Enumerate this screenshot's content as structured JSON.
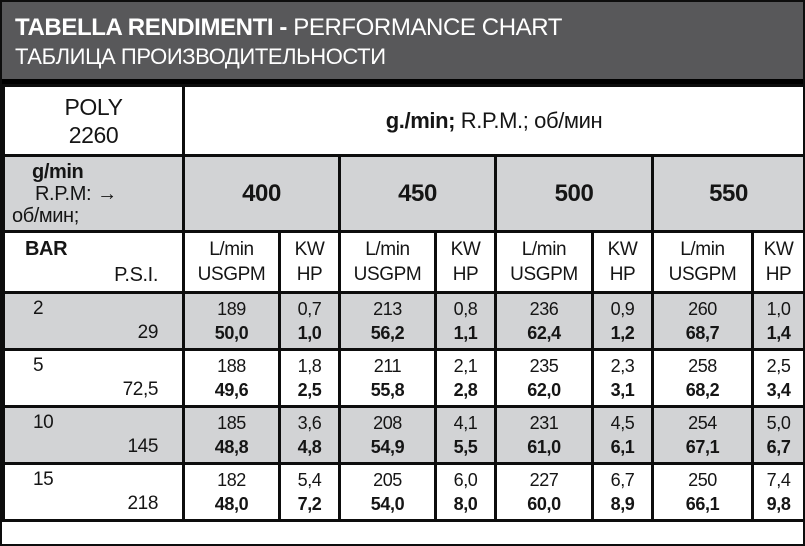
{
  "colors": {
    "title_bar_bg": "#58585a",
    "row_gray": "#d2d3d5",
    "border": "#0d0d0d",
    "title_text": "#ffffff",
    "body_text": "#151515"
  },
  "title": {
    "line1_bold": "TABELLA RENDIMENTI - ",
    "line1_regular": "PERFORMANCE CHART",
    "line2": "ТАБЛИЦА ПРОИЗВОДИТЕЛЬНОСТИ"
  },
  "model": {
    "line1": "POLY",
    "line2": "2260"
  },
  "units_header": {
    "bold": "g./min; ",
    "regular": " R.P.M.; об/мин"
  },
  "rpm_header": {
    "line1": "g/min",
    "line2": "R.P.M:",
    "arrow": "→",
    "line3": "об/мин;",
    "speeds": [
      "400",
      "450",
      "500",
      "550"
    ]
  },
  "col_header": {
    "left_top": "BAR",
    "left_bottom": "P.S.I.",
    "flow_top": "L/min",
    "flow_bottom": "USGPM",
    "power_top": "KW",
    "power_bottom": "HP"
  },
  "rows": [
    {
      "bar": "2",
      "psi": "29",
      "cells": [
        {
          "top": "189",
          "bottom": "50,0"
        },
        {
          "top": "0,7",
          "bottom": "1,0"
        },
        {
          "top": "213",
          "bottom": "56,2"
        },
        {
          "top": "0,8",
          "bottom": "1,1"
        },
        {
          "top": "236",
          "bottom": "62,4"
        },
        {
          "top": "0,9",
          "bottom": "1,2"
        },
        {
          "top": "260",
          "bottom": "68,7"
        },
        {
          "top": "1,0",
          "bottom": "1,4"
        }
      ]
    },
    {
      "bar": "5",
      "psi": "72,5",
      "cells": [
        {
          "top": "188",
          "bottom": "49,6"
        },
        {
          "top": "1,8",
          "bottom": "2,5"
        },
        {
          "top": "211",
          "bottom": "55,8"
        },
        {
          "top": "2,1",
          "bottom": "2,8"
        },
        {
          "top": "235",
          "bottom": "62,0"
        },
        {
          "top": "2,3",
          "bottom": "3,1"
        },
        {
          "top": "258",
          "bottom": "68,2"
        },
        {
          "top": "2,5",
          "bottom": "3,4"
        }
      ]
    },
    {
      "bar": "10",
      "psi": "145",
      "cells": [
        {
          "top": "185",
          "bottom": "48,8"
        },
        {
          "top": "3,6",
          "bottom": "4,8"
        },
        {
          "top": "208",
          "bottom": "54,9"
        },
        {
          "top": "4,1",
          "bottom": "5,5"
        },
        {
          "top": "231",
          "bottom": "61,0"
        },
        {
          "top": "4,5",
          "bottom": "6,1"
        },
        {
          "top": "254",
          "bottom": "67,1"
        },
        {
          "top": "5,0",
          "bottom": "6,7"
        }
      ]
    },
    {
      "bar": "15",
      "psi": "218",
      "cells": [
        {
          "top": "182",
          "bottom": "48,0"
        },
        {
          "top": "5,4",
          "bottom": "7,2"
        },
        {
          "top": "205",
          "bottom": "54,0"
        },
        {
          "top": "6,0",
          "bottom": "8,0"
        },
        {
          "top": "227",
          "bottom": "60,0"
        },
        {
          "top": "6,7",
          "bottom": "8,9"
        },
        {
          "top": "250",
          "bottom": "66,1"
        },
        {
          "top": "7,4",
          "bottom": "9,8"
        }
      ]
    }
  ],
  "chart_data": {
    "type": "table",
    "title": "TABELLA RENDIMENTI - PERFORMANCE CHART / ТАБЛИЦА ПРОИЗВОДИТЕЛЬНОСТИ",
    "model": "POLY 2260",
    "rpm_values": [
      400,
      450,
      500,
      550
    ],
    "row_axis": "pressure (BAR / P.S.I.)",
    "cell_units": [
      "L/min",
      "USGPM",
      "KW",
      "HP"
    ],
    "pressure_rows": [
      {
        "bar": 2,
        "psi": 29,
        "by_rpm": [
          {
            "rpm": 400,
            "l_min": 189,
            "usgpm": 50.0,
            "kw": 0.7,
            "hp": 1.0
          },
          {
            "rpm": 450,
            "l_min": 213,
            "usgpm": 56.2,
            "kw": 0.8,
            "hp": 1.1
          },
          {
            "rpm": 500,
            "l_min": 236,
            "usgpm": 62.4,
            "kw": 0.9,
            "hp": 1.2
          },
          {
            "rpm": 550,
            "l_min": 260,
            "usgpm": 68.7,
            "kw": 1.0,
            "hp": 1.4
          }
        ]
      },
      {
        "bar": 5,
        "psi": 72.5,
        "by_rpm": [
          {
            "rpm": 400,
            "l_min": 188,
            "usgpm": 49.6,
            "kw": 1.8,
            "hp": 2.5
          },
          {
            "rpm": 450,
            "l_min": 211,
            "usgpm": 55.8,
            "kw": 2.1,
            "hp": 2.8
          },
          {
            "rpm": 500,
            "l_min": 235,
            "usgpm": 62.0,
            "kw": 2.3,
            "hp": 3.1
          },
          {
            "rpm": 550,
            "l_min": 258,
            "usgpm": 68.2,
            "kw": 2.5,
            "hp": 3.4
          }
        ]
      },
      {
        "bar": 10,
        "psi": 145,
        "by_rpm": [
          {
            "rpm": 400,
            "l_min": 185,
            "usgpm": 48.8,
            "kw": 3.6,
            "hp": 4.8
          },
          {
            "rpm": 450,
            "l_min": 208,
            "usgpm": 54.9,
            "kw": 4.1,
            "hp": 5.5
          },
          {
            "rpm": 500,
            "l_min": 231,
            "usgpm": 61.0,
            "kw": 4.5,
            "hp": 6.1
          },
          {
            "rpm": 550,
            "l_min": 254,
            "usgpm": 67.1,
            "kw": 5.0,
            "hp": 6.7
          }
        ]
      },
      {
        "bar": 15,
        "psi": 218,
        "by_rpm": [
          {
            "rpm": 400,
            "l_min": 182,
            "usgpm": 48.0,
            "kw": 5.4,
            "hp": 7.2
          },
          {
            "rpm": 450,
            "l_min": 205,
            "usgpm": 54.0,
            "kw": 6.0,
            "hp": 8.0
          },
          {
            "rpm": 500,
            "l_min": 227,
            "usgpm": 60.0,
            "kw": 6.7,
            "hp": 8.9
          },
          {
            "rpm": 550,
            "l_min": 250,
            "usgpm": 66.1,
            "kw": 7.4,
            "hp": 9.8
          }
        ]
      }
    ]
  }
}
